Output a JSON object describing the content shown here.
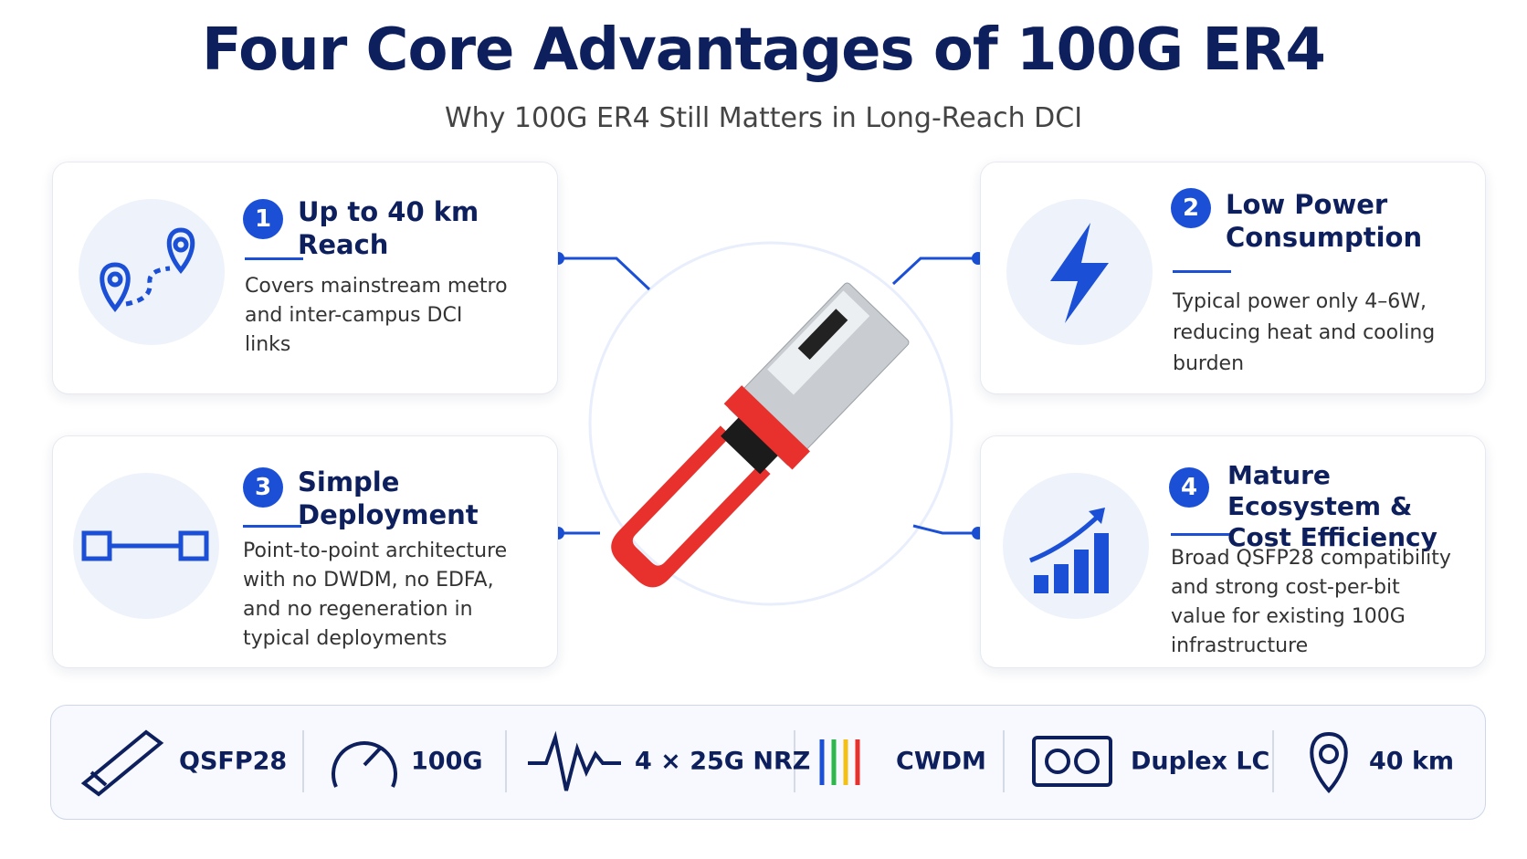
{
  "header": {
    "title": "Four Core Advantages of 100G ER4",
    "subtitle": "Why 100G ER4 Still Matters in Long-Reach DCI"
  },
  "cards": [
    {
      "number": "1",
      "title": "Up to 40 km Reach",
      "description": "Covers mainstream metro and inter-campus DCI links"
    },
    {
      "number": "2",
      "title": "Low Power Consumption",
      "description": "Typical power only 4–6W, reducing heat and cooling burden"
    },
    {
      "number": "3",
      "title": "Simple Deployment",
      "description": "Point-to-point architecture with no DWDM, no EDFA, and no regeneration in typical deployments"
    },
    {
      "number": "4",
      "title": "Mature Ecosystem & Cost Efficiency",
      "description": "Broad QSFP28 compatibility and strong cost-per-bit value for existing 100G infrastructure"
    }
  ],
  "specs": [
    "QSFP28",
    "100G",
    "4 × 25G NRZ",
    "CWDM",
    "Duplex LC",
    "40 km"
  ]
}
